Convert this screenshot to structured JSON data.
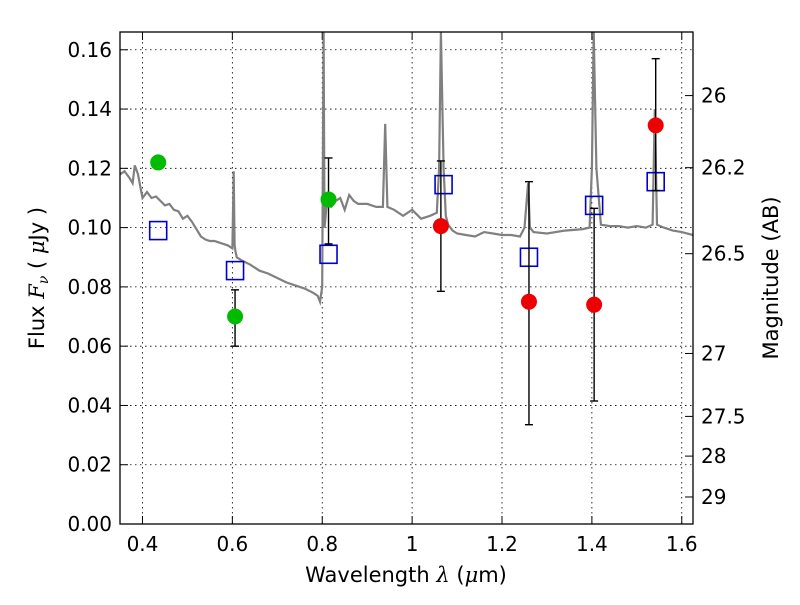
{
  "chart_data": {
    "type": "scatter",
    "xlabel": {
      "pre": "Wavelength",
      "sym": "λ",
      "unit_open": " (",
      "mu": "μ",
      "unit_rest": "m)"
    },
    "ylabel": {
      "pre": "Flux",
      "sym": "F",
      "sub": "ν",
      "unit_open": " ( ",
      "mu": "μ",
      "unit_rest": "Jy )"
    },
    "y2label": "Magnitude (AB)",
    "xlim": [
      0.35,
      1.625
    ],
    "ylim": [
      0.0,
      0.166
    ],
    "grid": true,
    "x_ticks": [
      {
        "v": 0.4,
        "label": "0.4"
      },
      {
        "v": 0.6,
        "label": "0.6"
      },
      {
        "v": 0.8,
        "label": "0.8"
      },
      {
        "v": 1.0,
        "label": "1"
      },
      {
        "v": 1.2,
        "label": "1.2"
      },
      {
        "v": 1.4,
        "label": "1.4"
      },
      {
        "v": 1.6,
        "label": "1.6"
      }
    ],
    "y_ticks": [
      {
        "v": 0.0,
        "label": "0.00"
      },
      {
        "v": 0.02,
        "label": "0.02"
      },
      {
        "v": 0.04,
        "label": "0.04"
      },
      {
        "v": 0.06,
        "label": "0.06"
      },
      {
        "v": 0.08,
        "label": "0.08"
      },
      {
        "v": 0.1,
        "label": "0.10"
      },
      {
        "v": 0.12,
        "label": "0.12"
      },
      {
        "v": 0.14,
        "label": "0.14"
      },
      {
        "v": 0.16,
        "label": "0.16"
      }
    ],
    "mag_ticks": [
      {
        "mag": 26,
        "label": "26"
      },
      {
        "mag": 26.2,
        "label": "26.2"
      },
      {
        "mag": 26.5,
        "label": "26.5"
      },
      {
        "mag": 27,
        "label": "27"
      },
      {
        "mag": 27.5,
        "label": "27.5"
      },
      {
        "mag": 28,
        "label": "28"
      },
      {
        "mag": 29,
        "label": "29"
      }
    ],
    "series": [
      {
        "kind": "green-points",
        "color": "#00bb00",
        "points": [
          {
            "x": 0.435,
            "y": 0.122
          },
          {
            "x": 0.606,
            "y": 0.07,
            "yerr": [
              0.06,
              0.079
            ]
          },
          {
            "x": 0.814,
            "y": 0.1095,
            "yerr": [
              0.0945,
              0.1235
            ]
          }
        ]
      },
      {
        "kind": "red-points",
        "color": "#ee0000",
        "points": [
          {
            "x": 1.064,
            "y": 0.1005,
            "yerr": [
              0.0785,
              0.1225
            ]
          },
          {
            "x": 1.26,
            "y": 0.075,
            "yerr": [
              0.0335,
              0.1155
            ]
          },
          {
            "x": 1.405,
            "y": 0.074,
            "yerr": [
              0.0415,
              0.1065
            ]
          },
          {
            "x": 1.542,
            "y": 0.1345,
            "yerr": [
              0.1125,
              0.157
            ]
          }
        ]
      },
      {
        "kind": "model-squares",
        "color": "#0000cc",
        "points": [
          {
            "x": 0.435,
            "y": 0.099
          },
          {
            "x": 0.606,
            "y": 0.0855
          },
          {
            "x": 0.814,
            "y": 0.091
          },
          {
            "x": 1.07,
            "y": 0.1145
          },
          {
            "x": 1.26,
            "y": 0.09
          },
          {
            "x": 1.405,
            "y": 0.1075
          },
          {
            "x": 1.542,
            "y": 0.1155
          }
        ]
      },
      {
        "kind": "model-spectrum",
        "color": "#808080",
        "x": [
          0.35,
          0.36,
          0.37,
          0.378,
          0.383,
          0.39,
          0.395,
          0.4,
          0.41,
          0.42,
          0.43,
          0.44,
          0.45,
          0.46,
          0.47,
          0.48,
          0.49,
          0.5,
          0.51,
          0.52,
          0.53,
          0.54,
          0.55,
          0.56,
          0.57,
          0.58,
          0.59,
          0.6,
          0.603,
          0.605,
          0.607,
          0.61,
          0.62,
          0.64,
          0.66,
          0.68,
          0.7,
          0.72,
          0.74,
          0.76,
          0.78,
          0.79,
          0.795,
          0.8,
          0.803,
          0.805,
          0.807,
          0.81,
          0.82,
          0.83,
          0.84,
          0.85,
          0.86,
          0.87,
          0.88,
          0.9,
          0.92,
          0.935,
          0.94,
          0.945,
          0.96,
          0.98,
          1.0,
          1.02,
          1.04,
          1.055,
          1.06,
          1.064,
          1.07,
          1.075,
          1.08,
          1.09,
          1.1,
          1.12,
          1.14,
          1.16,
          1.18,
          1.2,
          1.22,
          1.24,
          1.25,
          1.258,
          1.262,
          1.27,
          1.3,
          1.34,
          1.38,
          1.395,
          1.4,
          1.404,
          1.41,
          1.42,
          1.44,
          1.46,
          1.48,
          1.5,
          1.52,
          1.535,
          1.54,
          1.545,
          1.56,
          1.58,
          1.6,
          1.625
        ],
        "y": [
          0.118,
          0.119,
          0.117,
          0.115,
          0.121,
          0.118,
          0.114,
          0.11,
          0.112,
          0.11,
          0.1105,
          0.109,
          0.1075,
          0.108,
          0.106,
          0.1055,
          0.103,
          0.104,
          0.102,
          0.0995,
          0.097,
          0.096,
          0.0955,
          0.0955,
          0.095,
          0.0945,
          0.094,
          0.093,
          0.119,
          0.094,
          0.092,
          0.09,
          0.089,
          0.0875,
          0.0855,
          0.0845,
          0.083,
          0.0815,
          0.0805,
          0.0795,
          0.078,
          0.077,
          0.075,
          0.08,
          0.166,
          0.1,
          0.103,
          0.108,
          0.107,
          0.109,
          0.11,
          0.106,
          0.111,
          0.109,
          0.108,
          0.108,
          0.107,
          0.107,
          0.135,
          0.107,
          0.106,
          0.104,
          0.106,
          0.103,
          0.104,
          0.105,
          0.12,
          0.166,
          0.12,
          0.104,
          0.101,
          0.099,
          0.098,
          0.0975,
          0.097,
          0.0985,
          0.098,
          0.0975,
          0.0975,
          0.097,
          0.1,
          0.115,
          0.1,
          0.0985,
          0.098,
          0.099,
          0.0995,
          0.1,
          0.12,
          0.166,
          0.12,
          0.101,
          0.1005,
          0.1005,
          0.1,
          0.1005,
          0.1,
          0.101,
          0.14,
          0.101,
          0.1,
          0.099,
          0.0985,
          0.0975
        ]
      }
    ]
  }
}
